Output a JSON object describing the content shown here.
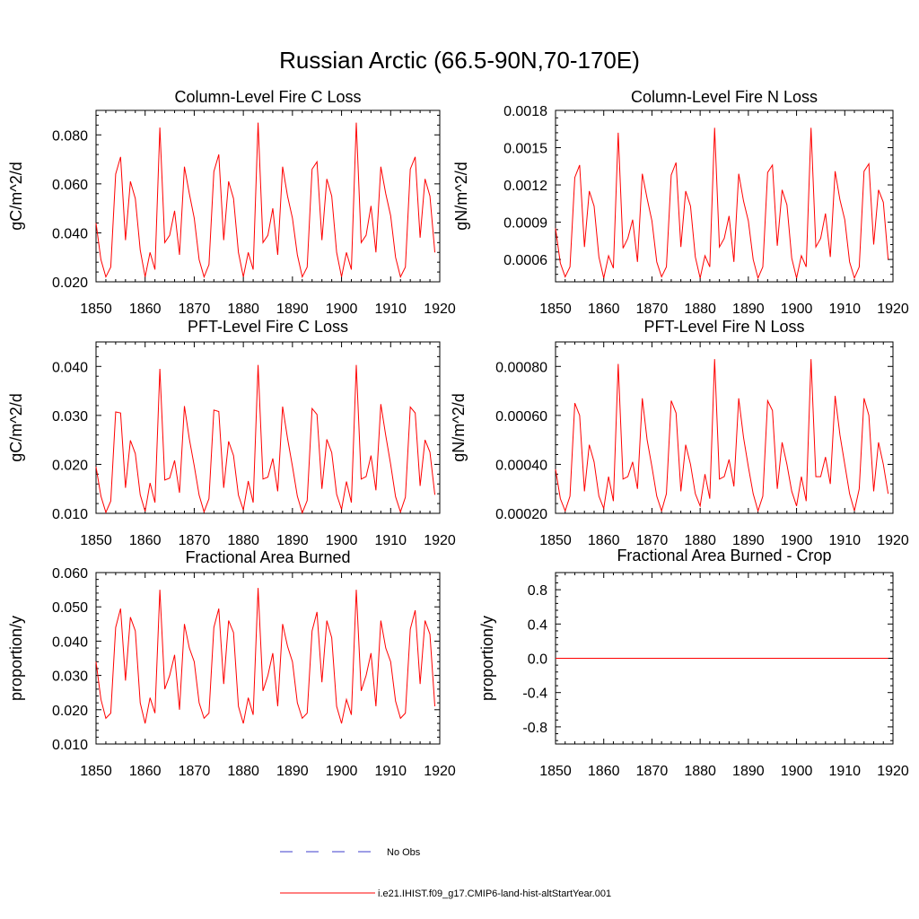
{
  "page_title": "Russian Arctic (66.5-90N,70-170E)",
  "legend": {
    "obs_label": "No Obs",
    "model_label": "i.e21.IHIST.f09_g17.CMIP6-land-hist-altStartYear.001",
    "obs_color": "#3c3ccc",
    "model_color": "#ff0000"
  },
  "chart_data": [
    {
      "type": "line",
      "title": "Column-Level Fire C Loss",
      "ylabel": "gC/m^2/d",
      "xlim": [
        1850,
        1920
      ],
      "ylim": [
        0.02,
        0.09
      ],
      "x_ticks": [
        "1850",
        "1860",
        "1870",
        "1880",
        "1890",
        "1900",
        "1910",
        "1920"
      ],
      "y_ticks": [
        {
          "value": 0.02,
          "label": "0.020"
        },
        {
          "value": 0.04,
          "label": "0.040"
        },
        {
          "value": 0.06,
          "label": "0.060"
        },
        {
          "value": 0.08,
          "label": "0.080"
        }
      ],
      "series": [
        {
          "x_start": 1850,
          "values": [
            0.044,
            0.029,
            0.022,
            0.026,
            0.064,
            0.071,
            0.037,
            0.061,
            0.054,
            0.033,
            0.022,
            0.032,
            0.025,
            0.083,
            0.036,
            0.039,
            0.049,
            0.031,
            0.067,
            0.056,
            0.046,
            0.029,
            0.022,
            0.027,
            0.065,
            0.072,
            0.037,
            0.061,
            0.054,
            0.032,
            0.022,
            0.032,
            0.025,
            0.085,
            0.036,
            0.039,
            0.05,
            0.031,
            0.067,
            0.055,
            0.046,
            0.031,
            0.022,
            0.026,
            0.066,
            0.069,
            0.037,
            0.062,
            0.055,
            0.032,
            0.022,
            0.032,
            0.025,
            0.085,
            0.036,
            0.039,
            0.051,
            0.032,
            0.067,
            0.056,
            0.047,
            0.03,
            0.022,
            0.026,
            0.066,
            0.071,
            0.038,
            0.062,
            0.055,
            0.032
          ]
        }
      ]
    },
    {
      "type": "line",
      "title": "Column-Level Fire N Loss",
      "ylabel": "gN/m^2/d",
      "xlim": [
        1850,
        1920
      ],
      "ylim": [
        0.00042,
        0.0018
      ],
      "x_ticks": [
        "1850",
        "1860",
        "1870",
        "1880",
        "1890",
        "1900",
        "1910",
        "1920"
      ],
      "y_ticks": [
        {
          "value": 0.0006,
          "label": "0.0006"
        },
        {
          "value": 0.0009,
          "label": "0.0009"
        },
        {
          "value": 0.0012,
          "label": "0.0012"
        },
        {
          "value": 0.0015,
          "label": "0.0015"
        },
        {
          "value": 0.0018,
          "label": "0.0018"
        }
      ],
      "series": [
        {
          "x_start": 1850,
          "values": [
            0.00085,
            0.00057,
            0.00046,
            0.00054,
            0.00126,
            0.00136,
            0.0007,
            0.00115,
            0.00103,
            0.00062,
            0.00045,
            0.00063,
            0.00053,
            0.00162,
            0.00069,
            0.00077,
            0.00092,
            0.00058,
            0.00129,
            0.00109,
            0.00091,
            0.00058,
            0.00046,
            0.00054,
            0.00128,
            0.00138,
            0.0007,
            0.00115,
            0.00103,
            0.00062,
            0.00045,
            0.00063,
            0.00054,
            0.00166,
            0.0007,
            0.00077,
            0.00095,
            0.00058,
            0.00129,
            0.00107,
            0.00091,
            0.0006,
            0.00045,
            0.00054,
            0.0013,
            0.00136,
            0.00071,
            0.00116,
            0.00104,
            0.00061,
            0.00045,
            0.00063,
            0.00054,
            0.00166,
            0.0007,
            0.00077,
            0.00097,
            0.00062,
            0.00131,
            0.00108,
            0.00092,
            0.00058,
            0.00045,
            0.00054,
            0.00131,
            0.00137,
            0.00072,
            0.00116,
            0.00106,
            0.0006
          ]
        }
      ]
    },
    {
      "type": "line",
      "title": "PFT-Level Fire C Loss",
      "ylabel": "gC/m^2/d",
      "xlim": [
        1850,
        1920
      ],
      "ylim": [
        0.01,
        0.045
      ],
      "x_ticks": [
        "1850",
        "1860",
        "1870",
        "1880",
        "1890",
        "1900",
        "1910",
        "1920"
      ],
      "y_ticks": [
        {
          "value": 0.01,
          "label": "0.010"
        },
        {
          "value": 0.02,
          "label": "0.020"
        },
        {
          "value": 0.03,
          "label": "0.030"
        },
        {
          "value": 0.04,
          "label": "0.040"
        }
      ],
      "series": [
        {
          "x_start": 1850,
          "values": [
            0.0195,
            0.0135,
            0.0102,
            0.0125,
            0.0307,
            0.0305,
            0.0152,
            0.0249,
            0.0222,
            0.0138,
            0.0104,
            0.0162,
            0.0122,
            0.0395,
            0.0168,
            0.0172,
            0.0208,
            0.0142,
            0.0319,
            0.0252,
            0.0197,
            0.0137,
            0.0103,
            0.013,
            0.0311,
            0.0308,
            0.0152,
            0.0247,
            0.0218,
            0.0137,
            0.0107,
            0.0166,
            0.0122,
            0.0403,
            0.017,
            0.0174,
            0.0212,
            0.0145,
            0.0318,
            0.0253,
            0.0196,
            0.0135,
            0.0101,
            0.0126,
            0.0314,
            0.0302,
            0.015,
            0.0251,
            0.0224,
            0.0139,
            0.0108,
            0.0165,
            0.0122,
            0.0403,
            0.017,
            0.0175,
            0.0218,
            0.0147,
            0.0323,
            0.0259,
            0.02,
            0.0134,
            0.0103,
            0.0133,
            0.0317,
            0.0305,
            0.0156,
            0.025,
            0.0225,
            0.0138
          ]
        }
      ]
    },
    {
      "type": "line",
      "title": "PFT-Level Fire N Loss",
      "ylabel": "gN/m^2/d",
      "xlim": [
        1850,
        1920
      ],
      "ylim": [
        0.0002,
        0.0009
      ],
      "x_ticks": [
        "1850",
        "1860",
        "1870",
        "1880",
        "1890",
        "1900",
        "1910",
        "1920"
      ],
      "y_ticks": [
        {
          "value": 0.0002,
          "label": "0.00020"
        },
        {
          "value": 0.0004,
          "label": "0.00040"
        },
        {
          "value": 0.0006,
          "label": "0.00060"
        },
        {
          "value": 0.0008,
          "label": "0.00080"
        }
      ],
      "series": [
        {
          "x_start": 1850,
          "values": [
            0.00038,
            0.00026,
            0.00021,
            0.00027,
            0.00065,
            0.0006,
            0.00029,
            0.00048,
            0.00041,
            0.00027,
            0.00022,
            0.00035,
            0.00025,
            0.00081,
            0.00034,
            0.00035,
            0.00041,
            0.0003,
            0.00067,
            0.0005,
            0.00039,
            0.00027,
            0.00021,
            0.00028,
            0.00066,
            0.00061,
            0.00029,
            0.00048,
            0.0004,
            0.00028,
            0.00023,
            0.00036,
            0.00026,
            0.00083,
            0.00034,
            0.00035,
            0.00042,
            0.00031,
            0.00067,
            0.00051,
            0.00039,
            0.00028,
            0.00021,
            0.00027,
            0.00066,
            0.00062,
            0.0003,
            0.00049,
            0.0004,
            0.00029,
            0.00023,
            0.00035,
            0.00025,
            0.00083,
            0.00035,
            0.00035,
            0.00043,
            0.00032,
            0.00068,
            0.00052,
            0.0004,
            0.00028,
            0.00021,
            0.0003,
            0.00067,
            0.0006,
            0.00029,
            0.00049,
            0.0004,
            0.00028
          ]
        }
      ]
    },
    {
      "type": "line",
      "title": "Fractional Area Burned",
      "ylabel": "proportion/y",
      "xlim": [
        1850,
        1920
      ],
      "ylim": [
        0.01,
        0.06
      ],
      "x_ticks": [
        "1850",
        "1860",
        "1870",
        "1880",
        "1890",
        "1900",
        "1910",
        "1920"
      ],
      "y_ticks": [
        {
          "value": 0.01,
          "label": "0.010"
        },
        {
          "value": 0.02,
          "label": "0.020"
        },
        {
          "value": 0.03,
          "label": "0.030"
        },
        {
          "value": 0.04,
          "label": "0.040"
        },
        {
          "value": 0.05,
          "label": "0.050"
        },
        {
          "value": 0.06,
          "label": "0.060"
        }
      ],
      "series": [
        {
          "x_start": 1850,
          "values": [
            0.034,
            0.023,
            0.0175,
            0.019,
            0.044,
            0.0495,
            0.0285,
            0.047,
            0.043,
            0.022,
            0.016,
            0.0235,
            0.019,
            0.055,
            0.026,
            0.03,
            0.036,
            0.02,
            0.045,
            0.038,
            0.034,
            0.022,
            0.0175,
            0.019,
            0.044,
            0.0495,
            0.0275,
            0.046,
            0.0425,
            0.021,
            0.016,
            0.0235,
            0.0185,
            0.0555,
            0.0255,
            0.03,
            0.0365,
            0.021,
            0.045,
            0.0385,
            0.034,
            0.022,
            0.0175,
            0.019,
            0.043,
            0.0485,
            0.028,
            0.046,
            0.041,
            0.021,
            0.016,
            0.023,
            0.0185,
            0.055,
            0.0255,
            0.03,
            0.0365,
            0.021,
            0.046,
            0.038,
            0.034,
            0.0225,
            0.0175,
            0.019,
            0.0435,
            0.049,
            0.0275,
            0.046,
            0.042,
            0.021
          ]
        }
      ]
    },
    {
      "type": "line",
      "title": "Fractional Area Burned - Crop",
      "ylabel": "proportion/y",
      "xlim": [
        1850,
        1920
      ],
      "ylim": [
        -1.0,
        1.0
      ],
      "x_ticks": [
        "1850",
        "1860",
        "1870",
        "1880",
        "1890",
        "1900",
        "1910",
        "1920"
      ],
      "y_ticks": [
        {
          "value": -0.8,
          "label": "-0.8"
        },
        {
          "value": -0.4,
          "label": "-0.4"
        },
        {
          "value": 0.0,
          "label": "0.0"
        },
        {
          "value": 0.4,
          "label": "0.4"
        },
        {
          "value": 0.8,
          "label": "0.8"
        }
      ],
      "series": [
        {
          "x_start": 1850,
          "values": [
            0,
            0,
            0,
            0,
            0,
            0,
            0,
            0,
            0,
            0,
            0,
            0,
            0,
            0,
            0,
            0,
            0,
            0,
            0,
            0,
            0,
            0,
            0,
            0,
            0,
            0,
            0,
            0,
            0,
            0,
            0,
            0,
            0,
            0,
            0,
            0,
            0,
            0,
            0,
            0,
            0,
            0,
            0,
            0,
            0,
            0,
            0,
            0,
            0,
            0,
            0,
            0,
            0,
            0,
            0,
            0,
            0,
            0,
            0,
            0,
            0,
            0,
            0,
            0,
            0,
            0,
            0,
            0,
            0,
            0
          ]
        }
      ]
    }
  ]
}
